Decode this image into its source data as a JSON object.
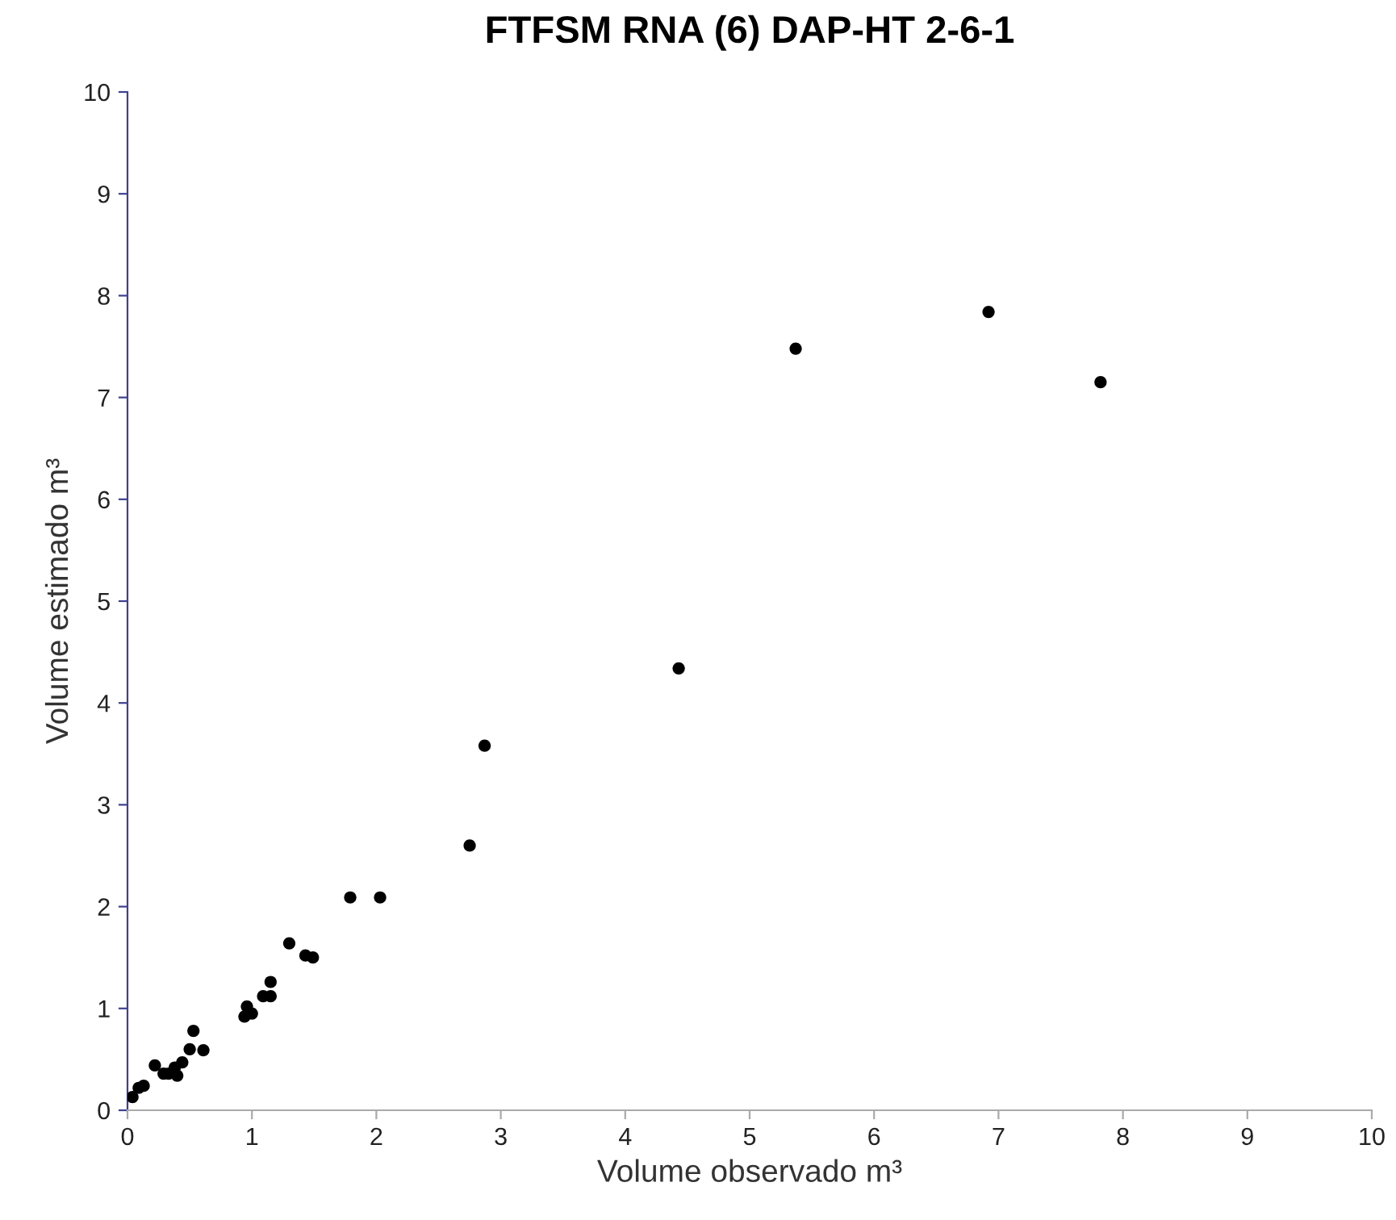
{
  "chart_data": {
    "type": "scatter",
    "title": "FTFSM RNA (6) DAP-HT 2-6-1",
    "xlabel": "Volume observado m³",
    "ylabel": "Volume estimado m³",
    "x": [
      0.04,
      0.09,
      0.13,
      0.22,
      0.29,
      0.33,
      0.4,
      0.38,
      0.44,
      0.5,
      0.53,
      0.61,
      0.94,
      0.96,
      1.0,
      1.09,
      1.15,
      1.15,
      1.3,
      1.43,
      1.49,
      1.79,
      2.03,
      2.75,
      2.87,
      4.43,
      5.37,
      6.92,
      7.82
    ],
    "values": [
      0.13,
      0.22,
      0.24,
      0.44,
      0.36,
      0.36,
      0.34,
      0.42,
      0.47,
      0.6,
      0.78,
      0.59,
      0.92,
      1.02,
      0.95,
      1.12,
      1.12,
      1.26,
      1.64,
      1.52,
      1.5,
      2.09,
      2.09,
      2.6,
      3.58,
      4.34,
      7.48,
      7.84,
      7.15
    ],
    "color": "#000000",
    "marker": "circle",
    "xlim": [
      0,
      10
    ],
    "ylim": [
      0,
      10
    ],
    "xticks": [
      0,
      1,
      2,
      3,
      4,
      5,
      6,
      7,
      8,
      9,
      10
    ],
    "yticks": [
      0,
      1,
      2,
      3,
      4,
      5,
      6,
      7,
      8,
      9,
      10
    ],
    "grid": false
  }
}
